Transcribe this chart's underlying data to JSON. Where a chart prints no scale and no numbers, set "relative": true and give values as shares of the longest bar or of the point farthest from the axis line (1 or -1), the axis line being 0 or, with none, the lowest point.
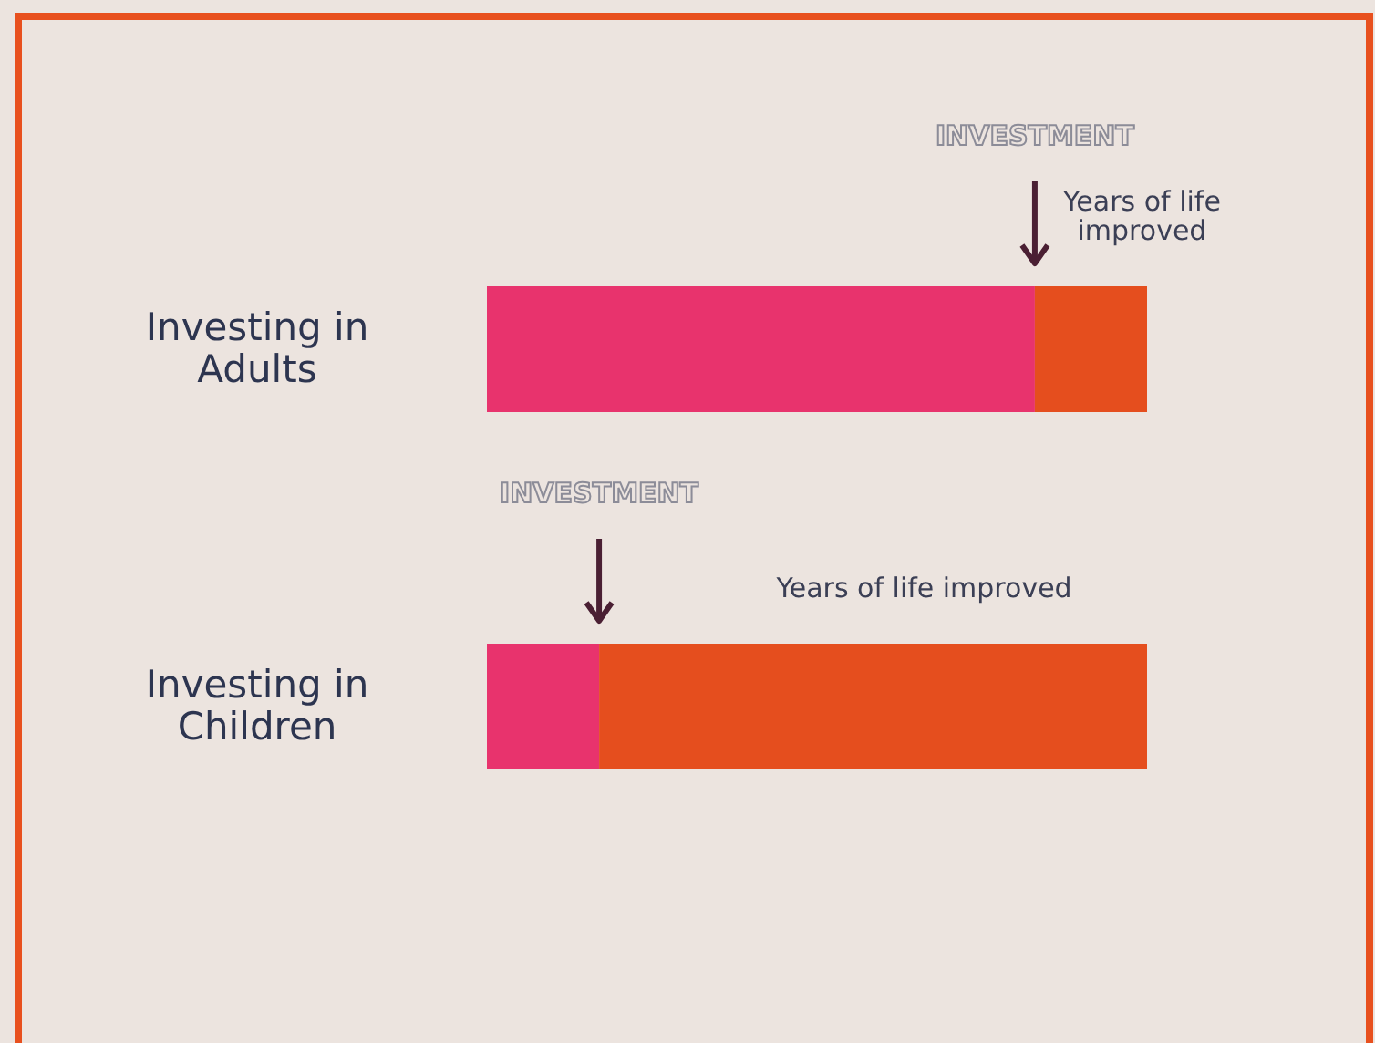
{
  "chart_data": {
    "type": "bar",
    "orientation": "horizontal",
    "stacked": true,
    "relative": true,
    "categories": [
      "Investing in Adults",
      "Investing in Children"
    ],
    "series": [
      {
        "color": "#e8336d",
        "values": [
          0.83,
          0.17
        ]
      },
      {
        "color": "#e54e1e",
        "values": [
          0.17,
          0.83
        ]
      }
    ],
    "annotations": [
      "INVESTMENT",
      "Years of life improved",
      "INVESTMENT",
      "Years of life improved"
    ]
  }
}
